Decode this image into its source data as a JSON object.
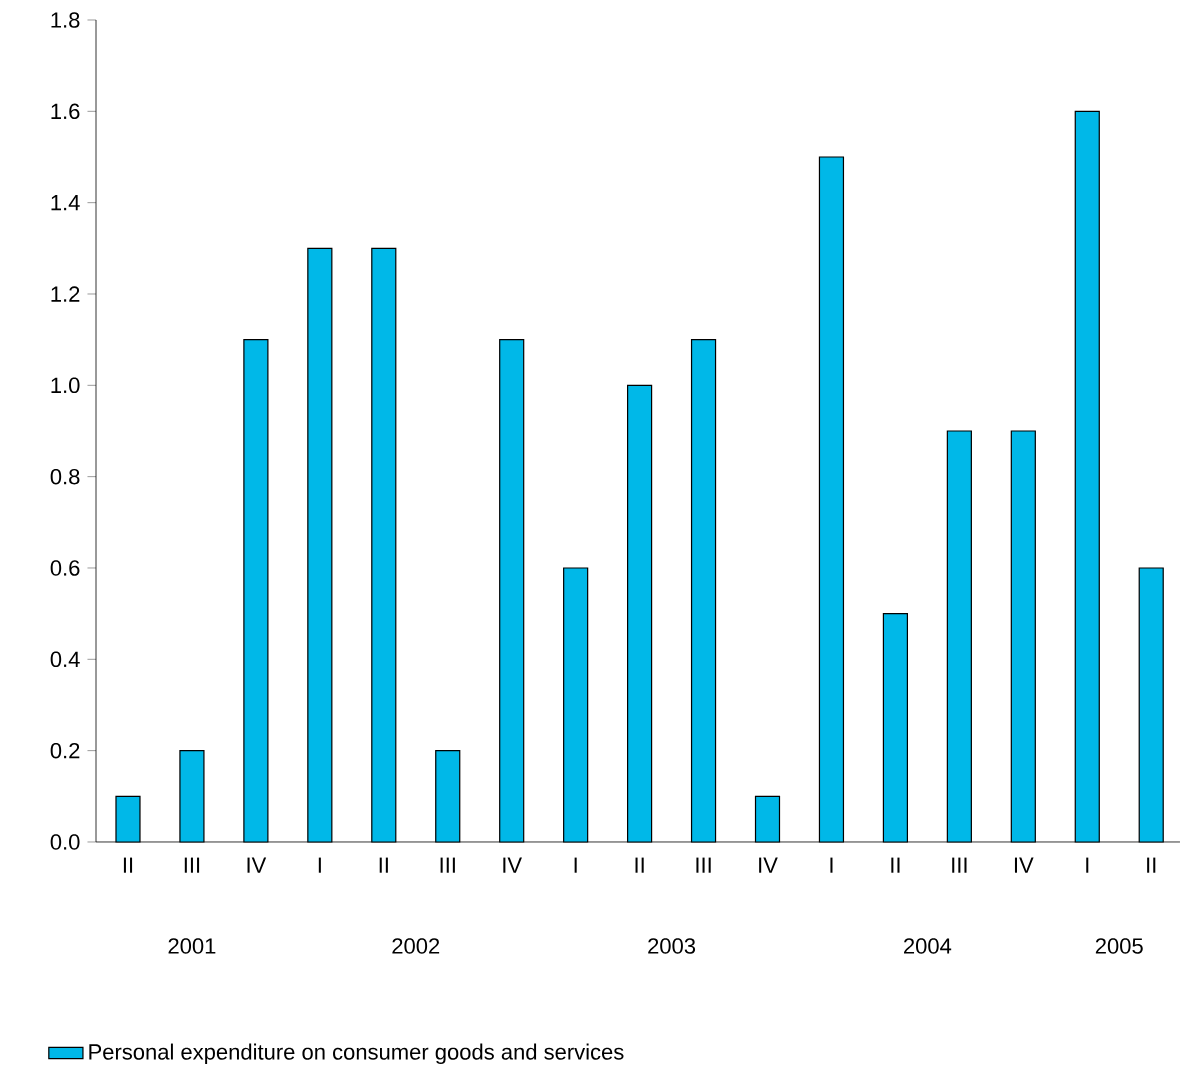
{
  "chart_data": {
    "type": "bar",
    "categories": [
      "II",
      "III",
      "IV",
      "I",
      "II",
      "III",
      "IV",
      "I",
      "II",
      "III",
      "IV",
      "I",
      "II",
      "III",
      "IV",
      "I",
      "II"
    ],
    "series": [
      {
        "name": "Personal expenditure on consumer goods and services",
        "color": "#00b8e8",
        "values": [
          0.1,
          0.2,
          1.1,
          1.3,
          1.3,
          0.2,
          1.1,
          0.6,
          1.0,
          1.1,
          0.1,
          1.5,
          0.5,
          0.9,
          0.9,
          1.6,
          0.6
        ]
      }
    ],
    "annotations": [
      "2001",
      "2002",
      "2003",
      "2004",
      "2005"
    ],
    "ylim": [
      0,
      1.8
    ],
    "yticks": [
      {
        "value": 0,
        "label": "0.0"
      },
      {
        "value": 0.2,
        "label": "0.2"
      },
      {
        "value": 0.4,
        "label": "0.4"
      },
      {
        "value": 0.6,
        "label": "0.6"
      },
      {
        "value": 0.8,
        "label": "0.8"
      },
      {
        "value": 1.0,
        "label": "1.0"
      },
      {
        "value": 1.2,
        "label": "1.2"
      },
      {
        "value": 1.4,
        "label": "1.4"
      },
      {
        "value": 1.6,
        "label": "1.6"
      },
      {
        "value": 1.8,
        "label": "1.8"
      }
    ],
    "grid": false,
    "legend": "bottom"
  }
}
